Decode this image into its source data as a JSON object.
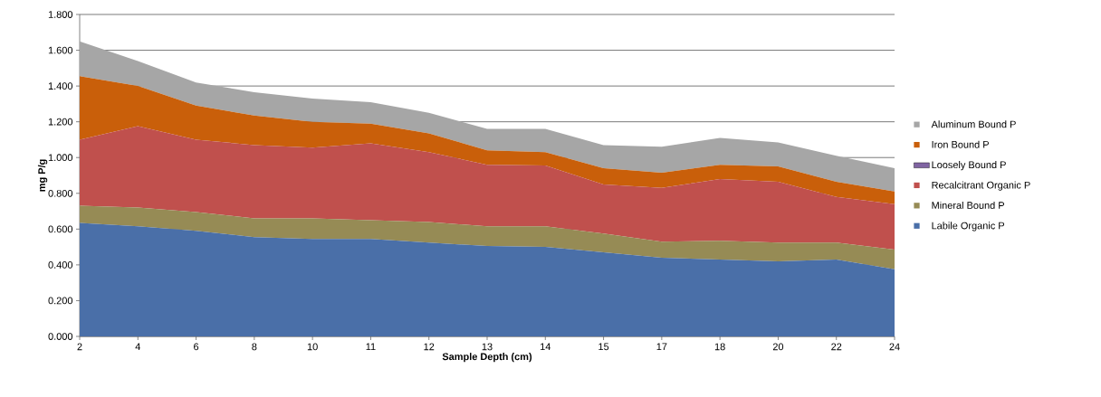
{
  "chart_data": {
    "type": "area",
    "stacked": true,
    "xlabel": "Sample Depth (cm)",
    "ylabel": "mg P/g",
    "categories": [
      "2",
      "4",
      "6",
      "8",
      "10",
      "11",
      "12",
      "13",
      "14",
      "15",
      "17",
      "18",
      "20",
      "22",
      "24"
    ],
    "series": [
      {
        "name": "Labile Organic P",
        "color": "#4a6fa8",
        "values": [
          0.635,
          0.615,
          0.59,
          0.555,
          0.545,
          0.545,
          0.525,
          0.505,
          0.5,
          0.47,
          0.44,
          0.43,
          0.42,
          0.43,
          0.375
        ]
      },
      {
        "name": "Mineral Bound P",
        "color": "#968b55",
        "values": [
          0.095,
          0.105,
          0.105,
          0.105,
          0.115,
          0.105,
          0.115,
          0.11,
          0.115,
          0.105,
          0.09,
          0.105,
          0.105,
          0.095,
          0.11
        ]
      },
      {
        "name": "Recalcitrant Organic P",
        "color": "#c0504d",
        "values": [
          0.37,
          0.455,
          0.405,
          0.41,
          0.395,
          0.43,
          0.39,
          0.345,
          0.34,
          0.275,
          0.3,
          0.345,
          0.34,
          0.255,
          0.255
        ]
      },
      {
        "name": "Loosely Bound P",
        "color": "#8064a2",
        "values": [
          null,
          null,
          null,
          null,
          null,
          null,
          null,
          null,
          null,
          null,
          null,
          null,
          null,
          null,
          null
        ]
      },
      {
        "name": "Iron Bound P",
        "color": "#c95f0a",
        "values": [
          0.355,
          0.225,
          0.19,
          0.165,
          0.145,
          0.11,
          0.105,
          0.08,
          0.075,
          0.09,
          0.085,
          0.08,
          0.085,
          0.085,
          0.07
        ]
      },
      {
        "name": "Aluminum Bound P",
        "color": "#a6a6a6",
        "values": [
          0.195,
          0.14,
          0.13,
          0.13,
          0.13,
          0.12,
          0.115,
          0.12,
          0.13,
          0.13,
          0.145,
          0.15,
          0.135,
          0.145,
          0.13
        ]
      }
    ],
    "ylim": [
      0,
      1.8
    ],
    "yticks": [
      {
        "value": 0,
        "label": "0.000"
      },
      {
        "value": 0.2,
        "label": "0.200"
      },
      {
        "value": 0.4,
        "label": "0.400"
      },
      {
        "value": 0.6,
        "label": "0.600"
      },
      {
        "value": 0.8,
        "label": "0.800"
      },
      {
        "value": 1.0,
        "label": "1.000"
      },
      {
        "value": 1.2,
        "label": "1.200"
      },
      {
        "value": 1.4,
        "label": "1.400"
      },
      {
        "value": 1.6,
        "label": "1.600"
      },
      {
        "value": 1.8,
        "label": "1.800"
      }
    ],
    "grid": "y",
    "legend": "right"
  }
}
